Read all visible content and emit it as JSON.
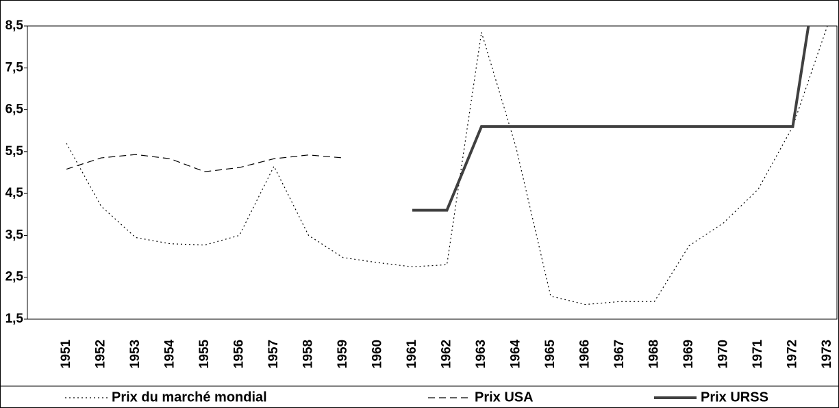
{
  "chart_data": {
    "type": "line",
    "categories": [
      "1951",
      "1952",
      "1953",
      "1954",
      "1955",
      "1956",
      "1957",
      "1958",
      "1959",
      "1960",
      "1961",
      "1962",
      "1963",
      "1964",
      "1965",
      "1966",
      "1967",
      "1968",
      "1969",
      "1970",
      "1971",
      "1972",
      "1973"
    ],
    "series": [
      {
        "name": "Prix du marché mondial",
        "color": "#000000",
        "style": "dotted",
        "values": [
          5.7,
          4.2,
          3.45,
          3.3,
          3.27,
          3.5,
          5.15,
          3.5,
          2.97,
          2.85,
          2.75,
          2.8,
          8.35,
          5.6,
          2.05,
          1.85,
          1.92,
          1.92,
          3.25,
          3.8,
          4.6,
          6.1,
          8.5
        ]
      },
      {
        "name": "Prix USA",
        "color": "#000000",
        "style": "dashed",
        "values": [
          5.08,
          5.35,
          5.43,
          5.33,
          5.02,
          5.12,
          5.33,
          5.42,
          5.35,
          null,
          null,
          null,
          null,
          null,
          null,
          null,
          null,
          null,
          null,
          null,
          null,
          null,
          null
        ]
      },
      {
        "name": "Prix URSS",
        "color": "#404040",
        "style": "solid",
        "values": [
          null,
          null,
          null,
          null,
          null,
          null,
          null,
          null,
          null,
          null,
          4.1,
          4.1,
          6.1,
          6.1,
          6.1,
          6.1,
          6.1,
          6.1,
          6.1,
          6.1,
          6.1,
          6.1,
          11.4
        ]
      }
    ],
    "ylim": [
      1.5,
      8.5
    ],
    "yticks": [
      {
        "value": 1.5,
        "label": "1,5"
      },
      {
        "value": 2.5,
        "label": "2,5"
      },
      {
        "value": 3.5,
        "label": "3,5"
      },
      {
        "value": 4.5,
        "label": "4,5"
      },
      {
        "value": 5.5,
        "label": "5,5"
      },
      {
        "value": 6.5,
        "label": "6,5"
      },
      {
        "value": 7.5,
        "label": "7,5"
      },
      {
        "value": 8.5,
        "label": "8,5"
      }
    ],
    "grid": false,
    "legend": "bottom"
  }
}
